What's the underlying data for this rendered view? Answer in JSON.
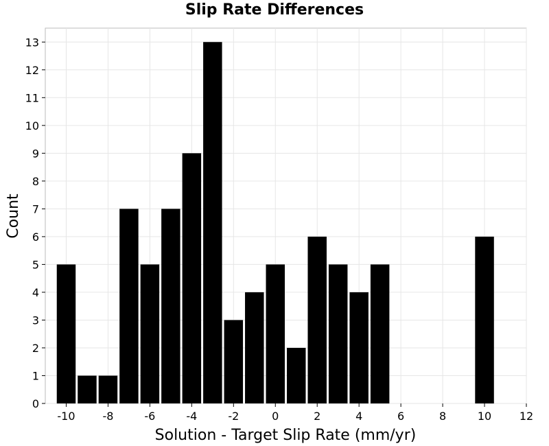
{
  "chart_data": {
    "type": "bar",
    "title": "Slip Rate Differences",
    "xlabel": "Solution - Target Slip Rate (mm/yr)",
    "ylabel": "Count",
    "xlim": [
      -11,
      12
    ],
    "ylim": [
      0,
      13.5
    ],
    "bin_width": 1,
    "xticks": [
      -10,
      -8,
      -6,
      -4,
      -2,
      0,
      2,
      4,
      6,
      8,
      10,
      12
    ],
    "yticks": [
      0,
      1,
      2,
      3,
      4,
      5,
      6,
      7,
      8,
      9,
      10,
      11,
      12,
      13
    ],
    "bins": [
      {
        "x": -10,
        "count": 5
      },
      {
        "x": -9,
        "count": 1
      },
      {
        "x": -8,
        "count": 1
      },
      {
        "x": -7,
        "count": 7
      },
      {
        "x": -6,
        "count": 5
      },
      {
        "x": -5,
        "count": 7
      },
      {
        "x": -4,
        "count": 9
      },
      {
        "x": -3,
        "count": 13
      },
      {
        "x": -2,
        "count": 3
      },
      {
        "x": -1,
        "count": 4
      },
      {
        "x": 0,
        "count": 5
      },
      {
        "x": 1,
        "count": 2
      },
      {
        "x": 2,
        "count": 6
      },
      {
        "x": 3,
        "count": 5
      },
      {
        "x": 4,
        "count": 4
      },
      {
        "x": 5,
        "count": 5
      },
      {
        "x": 10,
        "count": 6
      }
    ],
    "bar_color": "#000000",
    "grid": true,
    "grid_color": "#e6e6e6",
    "legend": "none"
  }
}
